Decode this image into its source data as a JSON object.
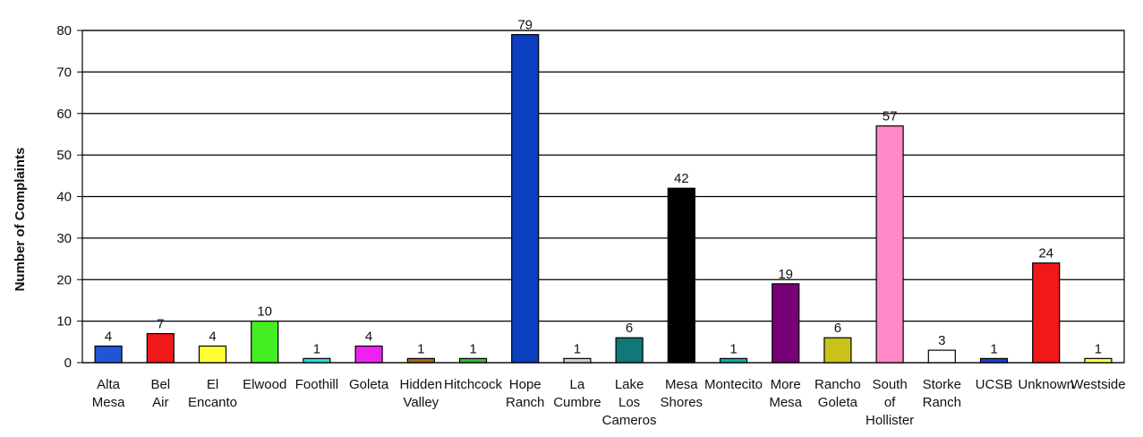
{
  "chart_data": {
    "type": "bar",
    "ylabel": "Number of Complaints",
    "ylim": [
      0,
      80
    ],
    "yticks": [
      0,
      10,
      20,
      30,
      40,
      50,
      60,
      70,
      80
    ],
    "grid": true,
    "categories": [
      "Alta Mesa",
      "Bel Air",
      "El Encanto",
      "Elwood",
      "Foothill",
      "Goleta",
      "Hidden Valley",
      "Hitchcock",
      "Hope Ranch",
      "La Cumbre",
      "Lake Los Cameros",
      "Mesa Shores",
      "Montecito",
      "More Mesa",
      "Rancho Goleta",
      "South of Hollister",
      "Storke Ranch",
      "UCSB",
      "Unknown",
      "Westside"
    ],
    "category_label_lines": [
      [
        "Alta",
        "Mesa"
      ],
      [
        "Bel",
        "Air"
      ],
      [
        "El",
        "Encanto"
      ],
      [
        "Elwood"
      ],
      [
        "Foothill"
      ],
      [
        "Goleta"
      ],
      [
        "Hidden",
        "Valley"
      ],
      [
        "Hitchcock"
      ],
      [
        "Hope",
        "Ranch"
      ],
      [
        "La",
        "Cumbre"
      ],
      [
        "Lake",
        "Los",
        "Cameros"
      ],
      [
        "Mesa",
        "Shores"
      ],
      [
        "Montecito"
      ],
      [
        "More",
        "Mesa"
      ],
      [
        "Rancho",
        "Goleta"
      ],
      [
        "South",
        "of",
        "Hollister"
      ],
      [
        "Storke",
        "Ranch"
      ],
      [
        "UCSB"
      ],
      [
        "Unknown"
      ],
      [
        "Westside"
      ]
    ],
    "values": [
      4,
      7,
      4,
      10,
      1,
      4,
      1,
      1,
      79,
      1,
      6,
      42,
      1,
      19,
      6,
      57,
      3,
      1,
      24,
      1
    ],
    "colors": [
      "#1f55d6",
      "#f01818",
      "#ffff33",
      "#44ee22",
      "#22dddd",
      "#ee22ee",
      "#aa6611",
      "#33bb33",
      "#0b3fbf",
      "#d0d0d0",
      "#117777",
      "#000000",
      "#11aaaa",
      "#770077",
      "#c8c21a",
      "#ff88c8",
      "#ffffff",
      "#1840d0",
      "#f01818",
      "#ffff44"
    ]
  }
}
